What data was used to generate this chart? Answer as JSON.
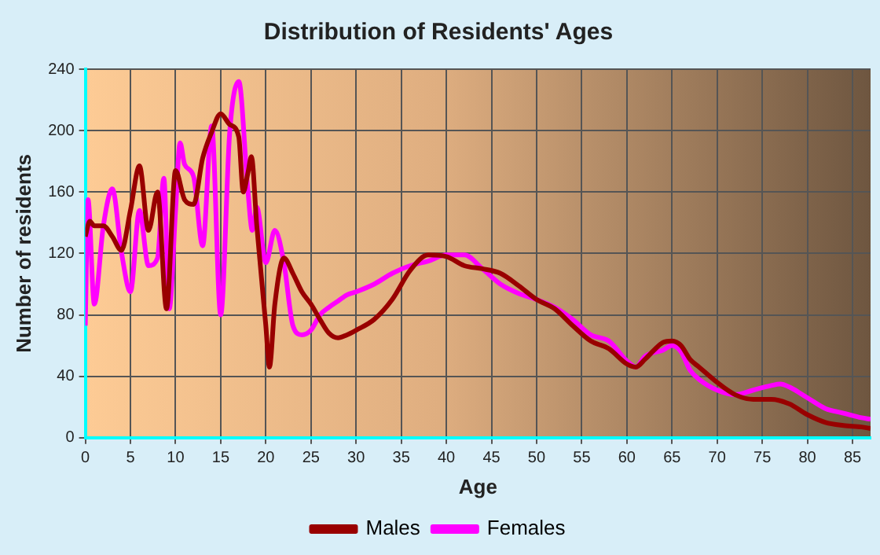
{
  "chart_data": {
    "type": "line",
    "title": "Distribution of Residents' Ages",
    "xlabel": "Age",
    "ylabel": "Number of residents",
    "xlim": [
      0,
      87
    ],
    "xticks": [
      0,
      5,
      10,
      15,
      20,
      25,
      30,
      35,
      40,
      45,
      50,
      55,
      60,
      65,
      70,
      75,
      80,
      85
    ],
    "ylim": [
      0,
      240
    ],
    "yticks": [
      0,
      40,
      80,
      120,
      160,
      200,
      240
    ],
    "grid": true,
    "legend": "bottom",
    "marker": "none",
    "line_style": "solid",
    "series": [
      {
        "name": "Males",
        "color": "#990000",
        "x": [
          0,
          0.5,
          1,
          2,
          3,
          4,
          5,
          6,
          7,
          8,
          9,
          10,
          11,
          12,
          13,
          14,
          15,
          16,
          17,
          17.5,
          18,
          18.4,
          19,
          20,
          20.4,
          21,
          22,
          23,
          24,
          25,
          26,
          27,
          28,
          29,
          30,
          32,
          34,
          36,
          38,
          40,
          42,
          44,
          46,
          48,
          50,
          52,
          54,
          56,
          58,
          60,
          61,
          62,
          63,
          64,
          65,
          66,
          67,
          68,
          70,
          72,
          74,
          76,
          78,
          80,
          82,
          84,
          86,
          87
        ],
        "values": [
          131,
          141,
          138,
          138,
          131,
          122,
          148,
          177,
          135,
          160,
          84,
          174,
          155,
          152,
          182,
          199,
          211,
          204,
          196,
          160,
          172,
          183,
          138,
          73,
          46,
          87,
          117,
          107,
          95,
          87,
          77,
          68,
          65,
          67,
          70,
          77,
          90,
          109,
          119,
          118,
          112,
          110,
          107,
          99,
          90,
          84,
          73,
          63,
          58,
          48,
          46,
          51,
          57,
          62,
          63,
          60,
          51,
          46,
          36,
          28,
          25,
          25,
          22,
          15,
          10,
          8,
          7,
          6
        ]
      },
      {
        "name": "Females",
        "color": "#ff00ff",
        "x": [
          0,
          0.3,
          1,
          2,
          3,
          4,
          5,
          6,
          7,
          8,
          8.7,
          9.3,
          10,
          10.5,
          11,
          12,
          13,
          14,
          15,
          16,
          17,
          18,
          18.5,
          19,
          20,
          21,
          22,
          23,
          24,
          25,
          26,
          27,
          28,
          29,
          30,
          32,
          34,
          36,
          38,
          40,
          42,
          44,
          46,
          48,
          50,
          52,
          54,
          56,
          58,
          60,
          61,
          62,
          64,
          65,
          66,
          67,
          68,
          70,
          72,
          74,
          76,
          77,
          78,
          80,
          82,
          84,
          86,
          87
        ],
        "values": [
          73,
          155,
          87,
          138,
          162,
          121,
          95,
          148,
          112,
          117,
          169,
          84,
          148,
          192,
          178,
          170,
          125,
          203,
          80,
          199,
          232,
          162,
          135,
          150,
          114,
          135,
          114,
          73,
          67,
          70,
          80,
          85,
          89,
          93,
          95,
          100,
          107,
          112,
          115,
          119,
          119,
          110,
          100,
          94,
          90,
          85,
          77,
          67,
          63,
          50,
          46,
          53,
          57,
          60,
          56,
          44,
          38,
          31,
          28,
          31,
          34,
          35,
          33,
          26,
          19,
          16,
          13,
          12
        ]
      }
    ]
  }
}
